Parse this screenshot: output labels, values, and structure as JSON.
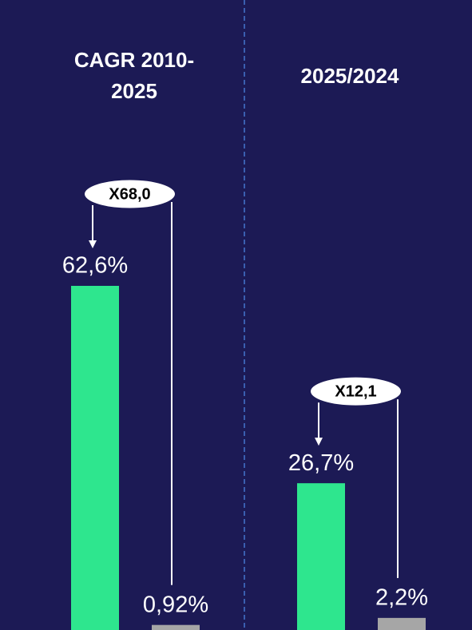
{
  "chart_data": [
    {
      "type": "bar",
      "title": "CAGR 2010-2025",
      "categories": [
        null,
        null
      ],
      "values": [
        62.6,
        0.92
      ],
      "value_labels": [
        "62,6%",
        "0,92%"
      ],
      "colors": [
        "#2ee68e",
        "#a6a6a6"
      ],
      "annotation": "X68,0"
    },
    {
      "type": "bar",
      "title": "2025/2024",
      "categories": [
        null,
        null
      ],
      "values": [
        26.7,
        2.2
      ],
      "value_labels": [
        "26,7%",
        "2,2%"
      ],
      "colors": [
        "#2ee68e",
        "#a6a6a6"
      ],
      "annotation": "X12,1"
    }
  ]
}
